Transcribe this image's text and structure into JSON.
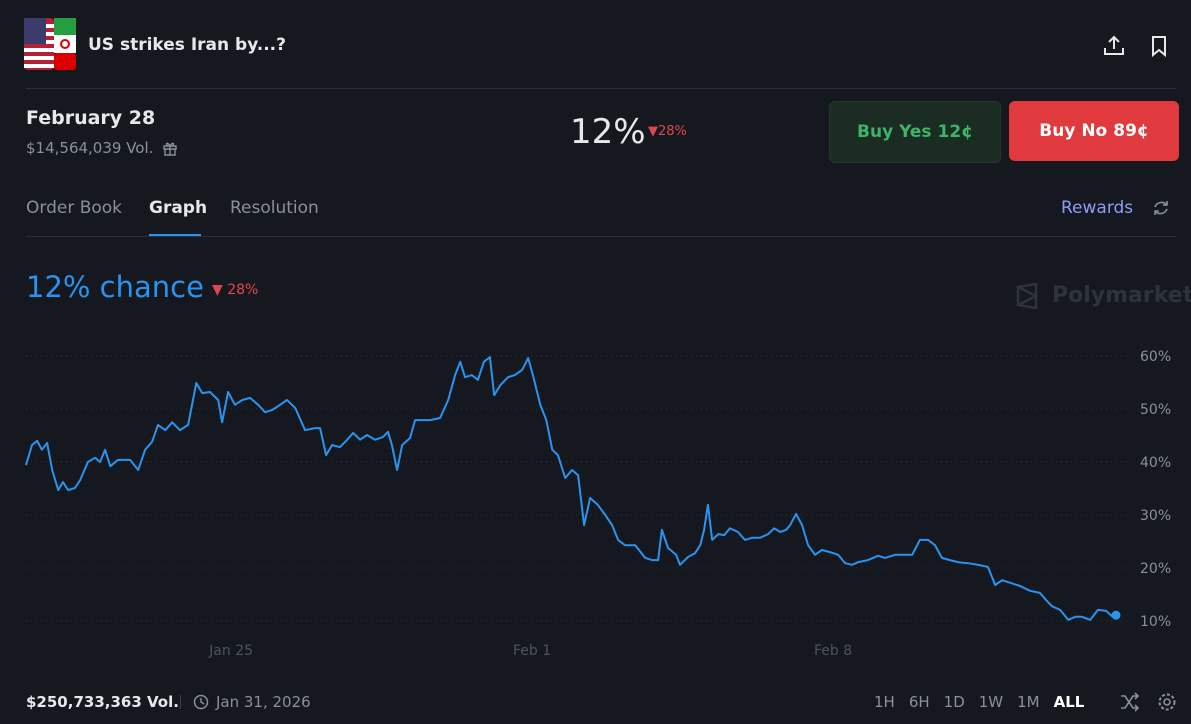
{
  "header": {
    "title": "US strikes Iran by...?"
  },
  "market": {
    "date": "February 28",
    "volume": "$14,564,039 Vol.",
    "probability": "12%",
    "change": "28%",
    "buy_yes_label": "Buy Yes",
    "buy_yes_price": "12¢",
    "buy_no_label": "Buy No",
    "buy_no_price": "89¢"
  },
  "tabs": [
    "Order Book",
    "Graph",
    "Resolution"
  ],
  "rewards": "Rewards",
  "chart_data": {
    "type": "line",
    "title": "12% chance",
    "change": "28%",
    "watermark": "Polymarket",
    "color": "#2a93f0",
    "x": [
      20.23,
      20.37,
      20.49,
      20.6,
      20.72,
      20.84,
      20.98,
      21.09,
      21.21,
      21.37,
      21.49,
      21.67,
      21.84,
      21.95,
      22.07,
      22.19,
      22.37,
      22.65,
      22.84,
      23.0,
      23.16,
      23.3,
      23.47,
      23.63,
      23.81,
      24.0,
      24.19,
      24.33,
      24.51,
      24.7,
      24.79,
      24.93,
      25.09,
      25.26,
      25.44,
      25.63,
      25.79,
      25.95,
      26.14,
      26.3,
      26.49,
      26.72,
      26.95,
      27.07,
      27.21,
      27.35,
      27.53,
      27.7,
      27.84,
      28.0,
      28.16,
      28.35,
      28.53,
      28.65,
      28.74,
      28.86,
      28.98,
      29.16,
      29.28,
      29.44,
      29.63,
      29.86,
      30.05,
      30.21,
      30.33,
      30.44,
      30.6,
      30.74,
      30.88,
      31.02,
      31.12,
      31.26,
      31.44,
      31.6,
      31.77,
      31.91,
      32.02,
      32.19,
      32.33,
      32.47,
      32.6,
      32.77,
      32.93,
      33.07,
      33.21,
      33.35,
      33.53,
      33.7,
      33.86,
      34.0,
      34.16,
      34.4,
      34.63,
      34.79,
      34.93,
      35.02,
      35.16,
      35.35,
      35.44,
      35.63,
      35.79,
      35.91,
      36.0,
      36.09,
      36.19,
      36.33,
      36.47,
      36.6,
      36.79,
      36.95,
      37.12,
      37.3,
      37.49,
      37.63,
      37.77,
      37.91,
      38.0,
      38.14,
      38.28,
      38.42,
      38.58,
      38.74,
      38.93,
      39.12,
      39.28,
      39.44,
      39.58,
      39.81,
      40.05,
      40.21,
      40.44,
      40.67,
      40.84,
      41.02,
      41.21,
      41.37,
      41.53,
      41.72,
      41.91,
      42.14,
      42.37,
      42.6,
      42.77,
      42.93,
      43.12,
      43.35,
      43.58,
      43.81,
      43.95,
      44.09,
      44.28,
      44.47,
      44.63,
      44.79,
      44.98,
      45.16,
      45.35,
      45.49,
      45.58
    ],
    "values": [
      39.4,
      43.2,
      44.0,
      42.3,
      43.6,
      38.5,
      34.7,
      36.2,
      34.7,
      35.1,
      36.6,
      40.0,
      40.8,
      40.0,
      42.3,
      39.2,
      40.4,
      40.4,
      38.5,
      42.3,
      43.8,
      47.0,
      46.0,
      47.5,
      46.0,
      47.0,
      54.9,
      53.0,
      53.2,
      51.7,
      47.5,
      53.2,
      50.8,
      51.7,
      52.1,
      50.8,
      49.4,
      49.8,
      50.8,
      51.7,
      50.2,
      46.0,
      46.4,
      46.4,
      41.3,
      43.2,
      42.8,
      44.2,
      45.5,
      44.2,
      45.1,
      44.2,
      44.7,
      45.7,
      43.2,
      38.5,
      43.2,
      44.5,
      47.9,
      47.9,
      47.9,
      48.3,
      51.7,
      56.4,
      58.9,
      56.0,
      56.4,
      55.5,
      58.9,
      59.8,
      52.6,
      54.5,
      56.0,
      56.4,
      57.4,
      59.6,
      56.4,
      50.8,
      47.9,
      42.3,
      41.3,
      37.0,
      38.5,
      37.5,
      28.1,
      33.2,
      31.9,
      30.0,
      28.1,
      25.3,
      24.3,
      24.3,
      21.9,
      21.5,
      21.5,
      27.2,
      23.8,
      22.5,
      20.6,
      22.1,
      22.8,
      24.3,
      27.2,
      31.9,
      25.3,
      26.4,
      26.2,
      27.5,
      26.8,
      25.3,
      25.7,
      25.7,
      26.4,
      27.5,
      26.8,
      27.2,
      28.1,
      30.2,
      28.1,
      24.3,
      22.5,
      23.4,
      23.0,
      22.5,
      20.9,
      20.6,
      21.1,
      21.5,
      22.3,
      21.9,
      22.5,
      22.5,
      22.5,
      25.3,
      25.3,
      24.3,
      21.9,
      21.5,
      21.1,
      20.9,
      20.6,
      20.2,
      16.8,
      17.7,
      17.2,
      16.6,
      15.7,
      15.3,
      14.0,
      12.8,
      12.1,
      10.2,
      10.8,
      10.8,
      10.2,
      12.1,
      11.9,
      10.9,
      11.1
    ],
    "xlim": [
      20.23,
      45.58
    ],
    "xticks": [
      {
        "value": 25,
        "label": "Jan 25"
      },
      {
        "value": 32,
        "label": "Feb 1"
      },
      {
        "value": 39,
        "label": "Feb 8"
      }
    ],
    "ylim": [
      6,
      64
    ],
    "yticks": [
      {
        "value": 10,
        "label": "10%"
      },
      {
        "value": 20,
        "label": "20%"
      },
      {
        "value": 30,
        "label": "30%"
      },
      {
        "value": 40,
        "label": "40%"
      },
      {
        "value": 50,
        "label": "50%"
      },
      {
        "value": 60,
        "label": "60%"
      }
    ],
    "grid": true
  },
  "footer": {
    "volume": "$250,733,363 Vol.",
    "date": "Jan 31, 2026",
    "ranges": [
      "1H",
      "6H",
      "1D",
      "1W",
      "1M",
      "ALL"
    ]
  }
}
